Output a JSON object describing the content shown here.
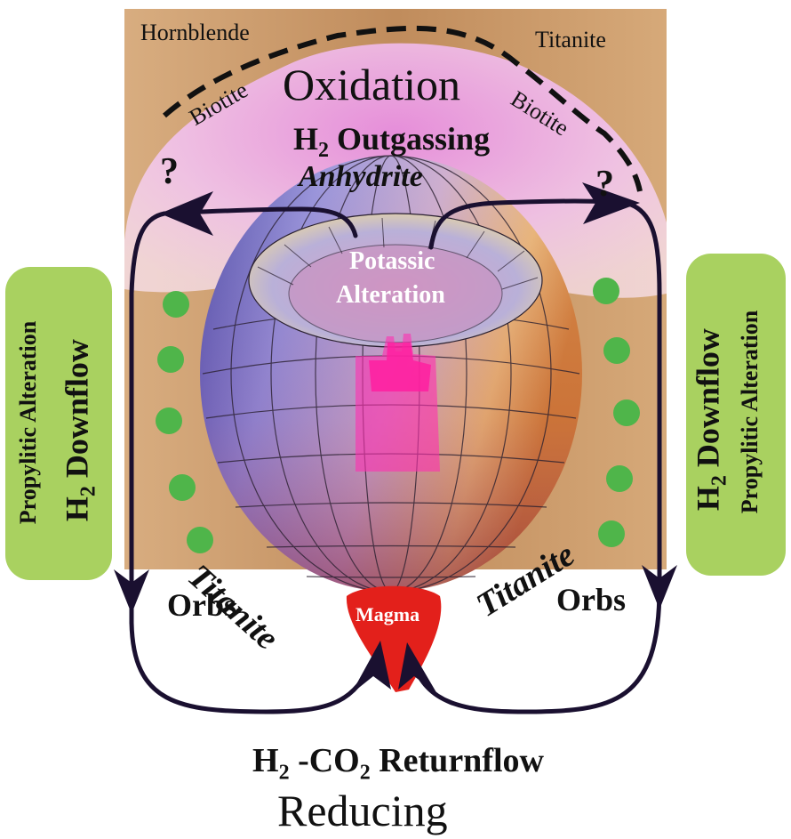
{
  "labels": {
    "hornblende": "Hornblende",
    "titanite_top": "Titanite",
    "oxidation": "Oxidation",
    "biotite_left": "Biotite",
    "biotite_right": "Biotite",
    "h2_outgassing_h": "H",
    "h2_outgassing_sub": "2",
    "h2_outgassing_rest": " Outgassing",
    "anhydrite": "Anhydrite",
    "question_left": "?",
    "question_right": "?",
    "potassic_1": "Potassic",
    "potassic_2": "Alteration",
    "propylitic_left": "Propylitic Alteration",
    "downflow_left_h": "H",
    "downflow_left_sub": "2",
    "downflow_left_rest": " Downflow",
    "propylitic_right": "Propylitic Alteration",
    "downflow_right_h": "H",
    "downflow_right_sub": "2",
    "downflow_right_rest": " Downflow",
    "titanite_left": "Titanite",
    "titanite_right": "Titanite",
    "orbs_left": "Orbs",
    "orbs_right": "Orbs",
    "magma": "Magma",
    "returnflow_h": "H",
    "returnflow_sub1": "2",
    "returnflow_mid": " -CO",
    "returnflow_sub2": "2",
    "returnflow_rest": " Returnflow",
    "reducing": "Reducing"
  },
  "colors": {
    "host_rock": "#c99a6b",
    "oxidation_zone": "#f2c6ee",
    "propylitic_panel": "#a9d160",
    "green_dots": "#4fb54a",
    "magma": "#e3201b",
    "plume": "#ff2fb0",
    "arrows": "#1a1030"
  }
}
